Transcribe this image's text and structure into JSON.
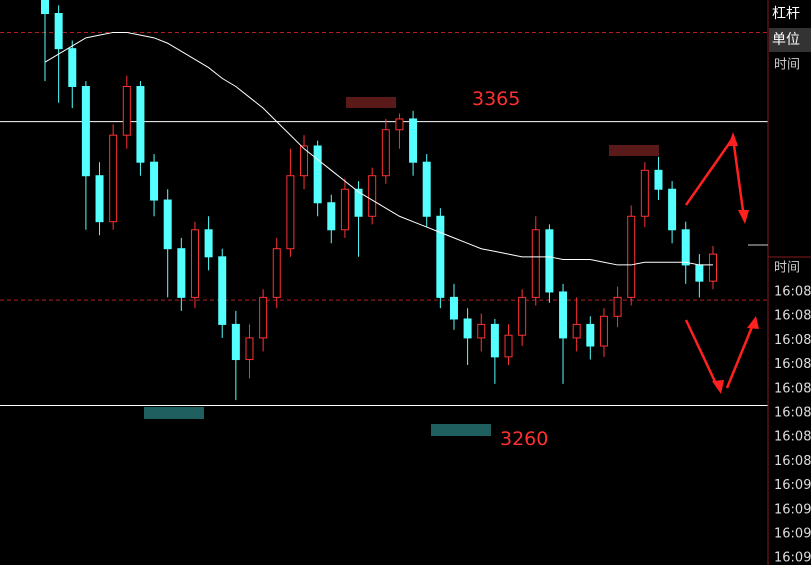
{
  "chart_data": {
    "type": "candlestick",
    "ylim": [
      3201,
      3410
    ],
    "open": [
      3410,
      3405,
      3392,
      3378,
      3345,
      3328,
      3360,
      3378,
      3350,
      3336,
      3318,
      3300,
      3325,
      3315,
      3290,
      3277,
      3285,
      3300,
      3318,
      3345,
      3356,
      3335,
      3325,
      3340,
      3330,
      3345,
      3362,
      3366,
      3350,
      3330,
      3300,
      3292,
      3285,
      3290,
      3278,
      3286,
      3300,
      3325,
      3302,
      3285,
      3290,
      3282,
      3293,
      3300,
      3330,
      3347,
      3340,
      3325,
      3312,
      3306
    ],
    "high": [
      3412,
      3408,
      3395,
      3380,
      3350,
      3364,
      3382,
      3380,
      3353,
      3340,
      3322,
      3328,
      3330,
      3318,
      3295,
      3290,
      3303,
      3322,
      3355,
      3360,
      3358,
      3338,
      3344,
      3343,
      3348,
      3366,
      3368,
      3369,
      3353,
      3333,
      3305,
      3296,
      3294,
      3292,
      3290,
      3303,
      3330,
      3327,
      3305,
      3300,
      3293,
      3296,
      3304,
      3334,
      3350,
      3352,
      3343,
      3328,
      3316,
      3319
    ],
    "low": [
      3380,
      3372,
      3370,
      3325,
      3323,
      3325,
      3355,
      3345,
      3330,
      3300,
      3295,
      3296,
      3310,
      3285,
      3262,
      3270,
      3280,
      3296,
      3315,
      3340,
      3330,
      3320,
      3322,
      3315,
      3327,
      3342,
      3355,
      3345,
      3326,
      3296,
      3288,
      3275,
      3280,
      3268,
      3275,
      3282,
      3297,
      3298,
      3268,
      3280,
      3277,
      3278,
      3289,
      3297,
      3326,
      3336,
      3320,
      3305,
      3300,
      3303
    ],
    "close": [
      3405,
      3392,
      3378,
      3345,
      3328,
      3360,
      3378,
      3350,
      3336,
      3318,
      3300,
      3325,
      3315,
      3290,
      3277,
      3285,
      3300,
      3318,
      3345,
      3356,
      3335,
      3325,
      3340,
      3330,
      3345,
      3362,
      3366,
      3350,
      3330,
      3300,
      3292,
      3285,
      3290,
      3278,
      3286,
      3300,
      3325,
      3302,
      3285,
      3290,
      3282,
      3293,
      3300,
      3330,
      3347,
      3340,
      3325,
      3312,
      3306,
      3316
    ],
    "ma": [
      3387,
      3390,
      3393,
      3396,
      3397,
      3398,
      3398,
      3397,
      3396,
      3394,
      3391,
      3388,
      3385,
      3381,
      3378,
      3374,
      3370,
      3365,
      3360,
      3355,
      3351,
      3347,
      3343,
      3339,
      3336,
      3333,
      3330,
      3328,
      3326,
      3324,
      3322,
      3320,
      3318,
      3317,
      3316,
      3315,
      3315,
      3315,
      3314,
      3314,
      3314,
      3313,
      3312,
      3312,
      3313,
      3313,
      3313,
      3313,
      3312,
      3312
    ],
    "levels": [
      3365,
      3260
    ],
    "dashed_levels": [
      3398,
      3299
    ],
    "up_color": "#ff3232",
    "down_color": "#54ffff",
    "ma_color": "#ffffff",
    "level_color": "#ffffff",
    "dashed_color": "#b02020"
  },
  "sidebar": {
    "leverage": "杠杆",
    "unit": "单位",
    "time_header": "时间",
    "time_header_2": "时间",
    "times": [
      "16:08:",
      "16:08:",
      "16:08:",
      "16:08:",
      "16:08:",
      "16:08:",
      "16:08:",
      "16:08:",
      "16:09:",
      "16:09:",
      "16:09:",
      "16:09:"
    ]
  }
}
